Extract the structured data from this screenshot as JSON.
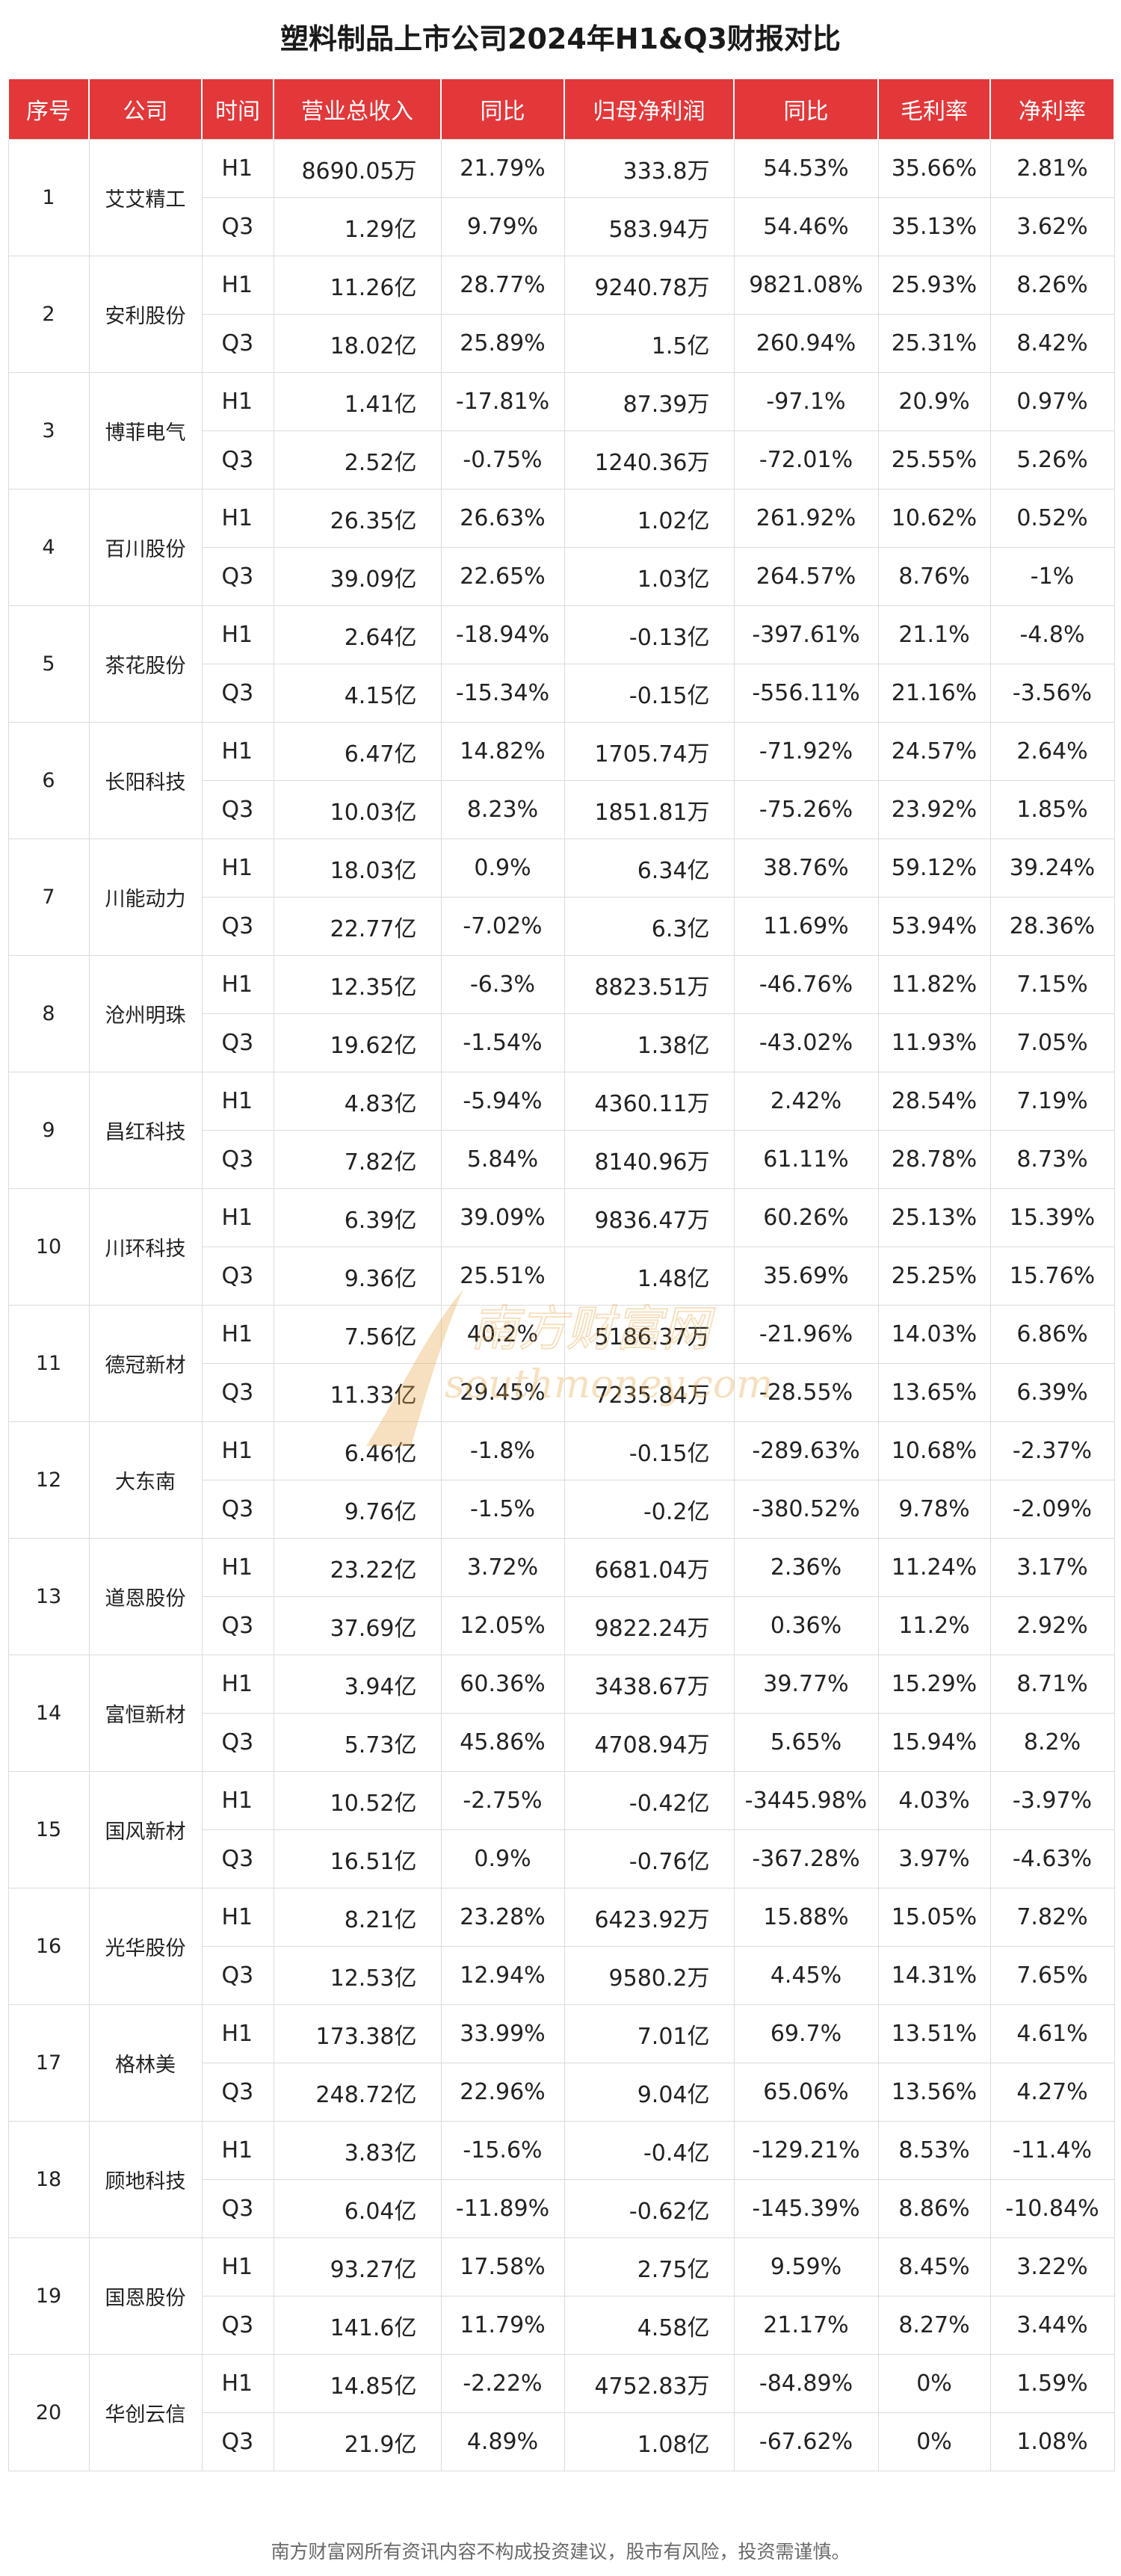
{
  "title": "塑料制品上市公司2024年H1&Q3财报对比",
  "headers": [
    "序号",
    "公司",
    "时间",
    "营业总收入",
    "同比",
    "归母净利润",
    "同比",
    "毛利率",
    "净利率"
  ],
  "companies": [
    {
      "index": "1",
      "name": "艾艾精工",
      "rows": [
        {
          "period": "H1",
          "revenue": "8690.05万",
          "revenue_yoy": "21.79%",
          "net_profit": "333.8万",
          "profit_yoy": "54.53%",
          "gross_margin": "35.66%",
          "net_margin": "2.81%"
        },
        {
          "period": "Q3",
          "revenue": "1.29亿",
          "revenue_yoy": "9.79%",
          "net_profit": "583.94万",
          "profit_yoy": "54.46%",
          "gross_margin": "35.13%",
          "net_margin": "3.62%"
        }
      ]
    },
    {
      "index": "2",
      "name": "安利股份",
      "rows": [
        {
          "period": "H1",
          "revenue": "11.26亿",
          "revenue_yoy": "28.77%",
          "net_profit": "9240.78万",
          "profit_yoy": "9821.08%",
          "gross_margin": "25.93%",
          "net_margin": "8.26%"
        },
        {
          "period": "Q3",
          "revenue": "18.02亿",
          "revenue_yoy": "25.89%",
          "net_profit": "1.5亿",
          "profit_yoy": "260.94%",
          "gross_margin": "25.31%",
          "net_margin": "8.42%"
        }
      ]
    },
    {
      "index": "3",
      "name": "博菲电气",
      "rows": [
        {
          "period": "H1",
          "revenue": "1.41亿",
          "revenue_yoy": "-17.81%",
          "net_profit": "87.39万",
          "profit_yoy": "-97.1%",
          "gross_margin": "20.9%",
          "net_margin": "0.97%"
        },
        {
          "period": "Q3",
          "revenue": "2.52亿",
          "revenue_yoy": "-0.75%",
          "net_profit": "1240.36万",
          "profit_yoy": "-72.01%",
          "gross_margin": "25.55%",
          "net_margin": "5.26%"
        }
      ]
    },
    {
      "index": "4",
      "name": "百川股份",
      "rows": [
        {
          "period": "H1",
          "revenue": "26.35亿",
          "revenue_yoy": "26.63%",
          "net_profit": "1.02亿",
          "profit_yoy": "261.92%",
          "gross_margin": "10.62%",
          "net_margin": "0.52%"
        },
        {
          "period": "Q3",
          "revenue": "39.09亿",
          "revenue_yoy": "22.65%",
          "net_profit": "1.03亿",
          "profit_yoy": "264.57%",
          "gross_margin": "8.76%",
          "net_margin": "-1%"
        }
      ]
    },
    {
      "index": "5",
      "name": "茶花股份",
      "rows": [
        {
          "period": "H1",
          "revenue": "2.64亿",
          "revenue_yoy": "-18.94%",
          "net_profit": "-0.13亿",
          "profit_yoy": "-397.61%",
          "gross_margin": "21.1%",
          "net_margin": "-4.8%"
        },
        {
          "period": "Q3",
          "revenue": "4.15亿",
          "revenue_yoy": "-15.34%",
          "net_profit": "-0.15亿",
          "profit_yoy": "-556.11%",
          "gross_margin": "21.16%",
          "net_margin": "-3.56%"
        }
      ]
    },
    {
      "index": "6",
      "name": "长阳科技",
      "rows": [
        {
          "period": "H1",
          "revenue": "6.47亿",
          "revenue_yoy": "14.82%",
          "net_profit": "1705.74万",
          "profit_yoy": "-71.92%",
          "gross_margin": "24.57%",
          "net_margin": "2.64%"
        },
        {
          "period": "Q3",
          "revenue": "10.03亿",
          "revenue_yoy": "8.23%",
          "net_profit": "1851.81万",
          "profit_yoy": "-75.26%",
          "gross_margin": "23.92%",
          "net_margin": "1.85%"
        }
      ]
    },
    {
      "index": "7",
      "name": "川能动力",
      "rows": [
        {
          "period": "H1",
          "revenue": "18.03亿",
          "revenue_yoy": "0.9%",
          "net_profit": "6.34亿",
          "profit_yoy": "38.76%",
          "gross_margin": "59.12%",
          "net_margin": "39.24%"
        },
        {
          "period": "Q3",
          "revenue": "22.77亿",
          "revenue_yoy": "-7.02%",
          "net_profit": "6.3亿",
          "profit_yoy": "11.69%",
          "gross_margin": "53.94%",
          "net_margin": "28.36%"
        }
      ]
    },
    {
      "index": "8",
      "name": "沧州明珠",
      "rows": [
        {
          "period": "H1",
          "revenue": "12.35亿",
          "revenue_yoy": "-6.3%",
          "net_profit": "8823.51万",
          "profit_yoy": "-46.76%",
          "gross_margin": "11.82%",
          "net_margin": "7.15%"
        },
        {
          "period": "Q3",
          "revenue": "19.62亿",
          "revenue_yoy": "-1.54%",
          "net_profit": "1.38亿",
          "profit_yoy": "-43.02%",
          "gross_margin": "11.93%",
          "net_margin": "7.05%"
        }
      ]
    },
    {
      "index": "9",
      "name": "昌红科技",
      "rows": [
        {
          "period": "H1",
          "revenue": "4.83亿",
          "revenue_yoy": "-5.94%",
          "net_profit": "4360.11万",
          "profit_yoy": "2.42%",
          "gross_margin": "28.54%",
          "net_margin": "7.19%"
        },
        {
          "period": "Q3",
          "revenue": "7.82亿",
          "revenue_yoy": "5.84%",
          "net_profit": "8140.96万",
          "profit_yoy": "61.11%",
          "gross_margin": "28.78%",
          "net_margin": "8.73%"
        }
      ]
    },
    {
      "index": "10",
      "name": "川环科技",
      "rows": [
        {
          "period": "H1",
          "revenue": "6.39亿",
          "revenue_yoy": "39.09%",
          "net_profit": "9836.47万",
          "profit_yoy": "60.26%",
          "gross_margin": "25.13%",
          "net_margin": "15.39%"
        },
        {
          "period": "Q3",
          "revenue": "9.36亿",
          "revenue_yoy": "25.51%",
          "net_profit": "1.48亿",
          "profit_yoy": "35.69%",
          "gross_margin": "25.25%",
          "net_margin": "15.76%"
        }
      ]
    },
    {
      "index": "11",
      "name": "德冠新材",
      "rows": [
        {
          "period": "H1",
          "revenue": "7.56亿",
          "revenue_yoy": "40.2%",
          "net_profit": "5186.37万",
          "profit_yoy": "-21.96%",
          "gross_margin": "14.03%",
          "net_margin": "6.86%"
        },
        {
          "period": "Q3",
          "revenue": "11.33亿",
          "revenue_yoy": "29.45%",
          "net_profit": "7235.84万",
          "profit_yoy": "-28.55%",
          "gross_margin": "13.65%",
          "net_margin": "6.39%"
        }
      ]
    },
    {
      "index": "12",
      "name": "大东南",
      "rows": [
        {
          "period": "H1",
          "revenue": "6.46亿",
          "revenue_yoy": "-1.8%",
          "net_profit": "-0.15亿",
          "profit_yoy": "-289.63%",
          "gross_margin": "10.68%",
          "net_margin": "-2.37%"
        },
        {
          "period": "Q3",
          "revenue": "9.76亿",
          "revenue_yoy": "-1.5%",
          "net_profit": "-0.2亿",
          "profit_yoy": "-380.52%",
          "gross_margin": "9.78%",
          "net_margin": "-2.09%"
        }
      ]
    },
    {
      "index": "13",
      "name": "道恩股份",
      "rows": [
        {
          "period": "H1",
          "revenue": "23.22亿",
          "revenue_yoy": "3.72%",
          "net_profit": "6681.04万",
          "profit_yoy": "2.36%",
          "gross_margin": "11.24%",
          "net_margin": "3.17%"
        },
        {
          "period": "Q3",
          "revenue": "37.69亿",
          "revenue_yoy": "12.05%",
          "net_profit": "9822.24万",
          "profit_yoy": "0.36%",
          "gross_margin": "11.2%",
          "net_margin": "2.92%"
        }
      ]
    },
    {
      "index": "14",
      "name": "富恒新材",
      "rows": [
        {
          "period": "H1",
          "revenue": "3.94亿",
          "revenue_yoy": "60.36%",
          "net_profit": "3438.67万",
          "profit_yoy": "39.77%",
          "gross_margin": "15.29%",
          "net_margin": "8.71%"
        },
        {
          "period": "Q3",
          "revenue": "5.73亿",
          "revenue_yoy": "45.86%",
          "net_profit": "4708.94万",
          "profit_yoy": "5.65%",
          "gross_margin": "15.94%",
          "net_margin": "8.2%"
        }
      ]
    },
    {
      "index": "15",
      "name": "国风新材",
      "rows": [
        {
          "period": "H1",
          "revenue": "10.52亿",
          "revenue_yoy": "-2.75%",
          "net_profit": "-0.42亿",
          "profit_yoy": "-3445.98%",
          "gross_margin": "4.03%",
          "net_margin": "-3.97%"
        },
        {
          "period": "Q3",
          "revenue": "16.51亿",
          "revenue_yoy": "0.9%",
          "net_profit": "-0.76亿",
          "profit_yoy": "-367.28%",
          "gross_margin": "3.97%",
          "net_margin": "-4.63%"
        }
      ]
    },
    {
      "index": "16",
      "name": "光华股份",
      "rows": [
        {
          "period": "H1",
          "revenue": "8.21亿",
          "revenue_yoy": "23.28%",
          "net_profit": "6423.92万",
          "profit_yoy": "15.88%",
          "gross_margin": "15.05%",
          "net_margin": "7.82%"
        },
        {
          "period": "Q3",
          "revenue": "12.53亿",
          "revenue_yoy": "12.94%",
          "net_profit": "9580.2万",
          "profit_yoy": "4.45%",
          "gross_margin": "14.31%",
          "net_margin": "7.65%"
        }
      ]
    },
    {
      "index": "17",
      "name": "格林美",
      "rows": [
        {
          "period": "H1",
          "revenue": "173.38亿",
          "revenue_yoy": "33.99%",
          "net_profit": "7.01亿",
          "profit_yoy": "69.7%",
          "gross_margin": "13.51%",
          "net_margin": "4.61%"
        },
        {
          "period": "Q3",
          "revenue": "248.72亿",
          "revenue_yoy": "22.96%",
          "net_profit": "9.04亿",
          "profit_yoy": "65.06%",
          "gross_margin": "13.56%",
          "net_margin": "4.27%"
        }
      ]
    },
    {
      "index": "18",
      "name": "顾地科技",
      "rows": [
        {
          "period": "H1",
          "revenue": "3.83亿",
          "revenue_yoy": "-15.6%",
          "net_profit": "-0.4亿",
          "profit_yoy": "-129.21%",
          "gross_margin": "8.53%",
          "net_margin": "-11.4%"
        },
        {
          "period": "Q3",
          "revenue": "6.04亿",
          "revenue_yoy": "-11.89%",
          "net_profit": "-0.62亿",
          "profit_yoy": "-145.39%",
          "gross_margin": "8.86%",
          "net_margin": "-10.84%"
        }
      ]
    },
    {
      "index": "19",
      "name": "国恩股份",
      "rows": [
        {
          "period": "H1",
          "revenue": "93.27亿",
          "revenue_yoy": "17.58%",
          "net_profit": "2.75亿",
          "profit_yoy": "9.59%",
          "gross_margin": "8.45%",
          "net_margin": "3.22%"
        },
        {
          "period": "Q3",
          "revenue": "141.6亿",
          "revenue_yoy": "11.79%",
          "net_profit": "4.58亿",
          "profit_yoy": "21.17%",
          "gross_margin": "8.27%",
          "net_margin": "3.44%"
        }
      ]
    },
    {
      "index": "20",
      "name": "华创云信",
      "rows": [
        {
          "period": "H1",
          "revenue": "14.85亿",
          "revenue_yoy": "-2.22%",
          "net_profit": "4752.83万",
          "profit_yoy": "-84.89%",
          "gross_margin": "0%",
          "net_margin": "1.59%"
        },
        {
          "period": "Q3",
          "revenue": "21.9亿",
          "revenue_yoy": "4.89%",
          "net_profit": "1.08亿",
          "profit_yoy": "-67.62%",
          "gross_margin": "0%",
          "net_margin": "1.08%"
        }
      ]
    }
  ],
  "watermark": {
    "cn": "南方财富网",
    "en": "southmoney.com"
  },
  "footer": "南方财富网所有资讯内容不构成投资建议，股市有风险，投资需谨慎。",
  "colors": {
    "header_bg": "#e2383a",
    "header_text": "#ffffff",
    "border": "#dcdcdc",
    "watermark": "#e8a84a"
  }
}
